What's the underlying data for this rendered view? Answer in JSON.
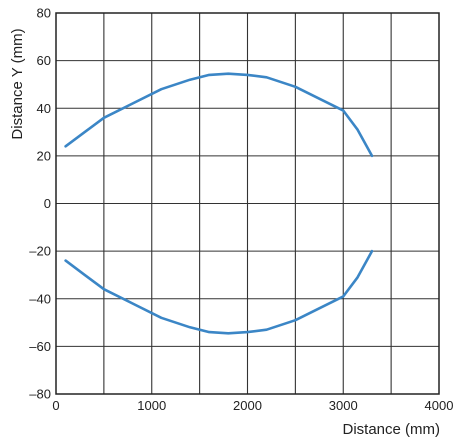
{
  "chart_data": {
    "type": "line",
    "title": "",
    "xlabel": "Distance (mm)",
    "ylabel": "Distance Y (mm)",
    "xlim": [
      0,
      4000
    ],
    "ylim": [
      -80,
      80
    ],
    "x_ticks": [
      0,
      1000,
      2000,
      3000,
      4000
    ],
    "y_ticks": [
      80,
      60,
      40,
      20,
      0,
      -20,
      -40,
      -60,
      -80
    ],
    "x_tick_labels": [
      "0",
      "1000",
      "2000",
      "3000",
      "4000"
    ],
    "y_tick_labels": [
      "80",
      "60",
      "40",
      "20",
      "0",
      "–20",
      "–40",
      "–60",
      "–80"
    ],
    "x_grid_step": 500,
    "y_grid_step": 20,
    "grid": true,
    "line_color": "#3b86c6",
    "series": [
      {
        "x": [
          100,
          300,
          500,
          800,
          1100,
          1400,
          1600,
          1800,
          2000,
          2200,
          2500,
          2800,
          3000,
          3150,
          3300
        ],
        "y": [
          24,
          30,
          36,
          42,
          48,
          52,
          54,
          54.5,
          54,
          53,
          49,
          43,
          39,
          31,
          20
        ]
      },
      {
        "x": [
          100,
          300,
          500,
          800,
          1100,
          1400,
          1600,
          1800,
          2000,
          2200,
          2500,
          2800,
          3000,
          3150,
          3300
        ],
        "y": [
          -24,
          -30,
          -36,
          -42,
          -48,
          -52,
          -54,
          -54.5,
          -54,
          -53,
          -49,
          -43,
          -39,
          -31,
          -20
        ]
      }
    ]
  }
}
